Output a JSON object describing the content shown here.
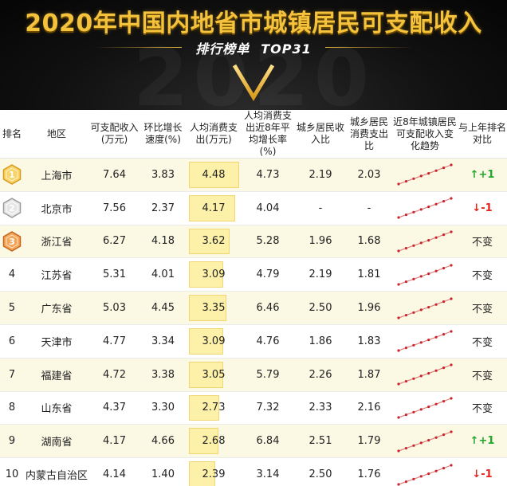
{
  "header": {
    "title": "2020年中国内地省市城镇居民可支配收入",
    "subtitle_left": "排行榜单",
    "subtitle_right": "TOP31",
    "background_year": "2020"
  },
  "columns": {
    "rank": "排名",
    "region": "地区",
    "income": "可支配收入(万元)",
    "growth": "环比增长速度(%)",
    "consumption": "人均消费支出(万元)",
    "consumption_growth": "人均消费支出近8年平均增长率(%)",
    "urban_rural_income": "城乡居民收入比",
    "urban_rural_consumption": "城乡居民消费支出比",
    "trend": "近8年城镇居民可支配收入变化趋势",
    "rank_change": "与上年排名对比"
  },
  "colors": {
    "title_gold": "#f4c23b",
    "bar_fill": "#fdf1a9",
    "bar_border": "#f0d772",
    "row_alt": "#fbf8e4",
    "spark_line": "#e08080",
    "spark_dot": "#c9242c",
    "up": "#21a82c",
    "down": "#e5241b"
  },
  "chart_data": {
    "type": "table",
    "title": "2020年中国内地省市城镇居民可支配收入",
    "bar_scale_max": 4.48,
    "rows": [
      {
        "rank": "1",
        "medal": "gold",
        "region": "上海市",
        "income": "7.64",
        "growth": "3.83",
        "consumption": 4.48,
        "consumption_growth": "4.73",
        "ur_income": "2.19",
        "ur_consumption": "2.03",
        "change": "↑+1",
        "change_dir": "up"
      },
      {
        "rank": "2",
        "medal": "silver",
        "region": "北京市",
        "income": "7.56",
        "growth": "2.37",
        "consumption": 4.17,
        "consumption_growth": "4.04",
        "ur_income": "-",
        "ur_consumption": "-",
        "change": "↓-1",
        "change_dir": "down"
      },
      {
        "rank": "3",
        "medal": "bronze",
        "region": "浙江省",
        "income": "6.27",
        "growth": "4.18",
        "consumption": 3.62,
        "consumption_growth": "5.28",
        "ur_income": "1.96",
        "ur_consumption": "1.68",
        "change": "不变",
        "change_dir": "none"
      },
      {
        "rank": "4",
        "medal": "",
        "region": "江苏省",
        "income": "5.31",
        "growth": "4.01",
        "consumption": 3.09,
        "consumption_growth": "4.79",
        "ur_income": "2.19",
        "ur_consumption": "1.81",
        "change": "不变",
        "change_dir": "none"
      },
      {
        "rank": "5",
        "medal": "",
        "region": "广东省",
        "income": "5.03",
        "growth": "4.45",
        "consumption": 3.35,
        "consumption_growth": "6.46",
        "ur_income": "2.50",
        "ur_consumption": "1.96",
        "change": "不变",
        "change_dir": "none"
      },
      {
        "rank": "6",
        "medal": "",
        "region": "天津市",
        "income": "4.77",
        "growth": "3.34",
        "consumption": 3.09,
        "consumption_growth": "4.76",
        "ur_income": "1.86",
        "ur_consumption": "1.83",
        "change": "不变",
        "change_dir": "none"
      },
      {
        "rank": "7",
        "medal": "",
        "region": "福建省",
        "income": "4.72",
        "growth": "3.38",
        "consumption": 3.05,
        "consumption_growth": "5.79",
        "ur_income": "2.26",
        "ur_consumption": "1.87",
        "change": "不变",
        "change_dir": "none"
      },
      {
        "rank": "8",
        "medal": "",
        "region": "山东省",
        "income": "4.37",
        "growth": "3.30",
        "consumption": 2.73,
        "consumption_growth": "7.32",
        "ur_income": "2.33",
        "ur_consumption": "2.16",
        "change": "不变",
        "change_dir": "none"
      },
      {
        "rank": "9",
        "medal": "",
        "region": "湖南省",
        "income": "4.17",
        "growth": "4.66",
        "consumption": 2.68,
        "consumption_growth": "6.84",
        "ur_income": "2.51",
        "ur_consumption": "1.79",
        "change": "↑+1",
        "change_dir": "up"
      },
      {
        "rank": "10",
        "medal": "",
        "region": "内蒙古自治区",
        "income": "4.14",
        "growth": "1.40",
        "consumption": 2.39,
        "consumption_growth": "3.14",
        "ur_income": "2.50",
        "ur_consumption": "1.76",
        "change": "↓-1",
        "change_dir": "down"
      }
    ]
  }
}
